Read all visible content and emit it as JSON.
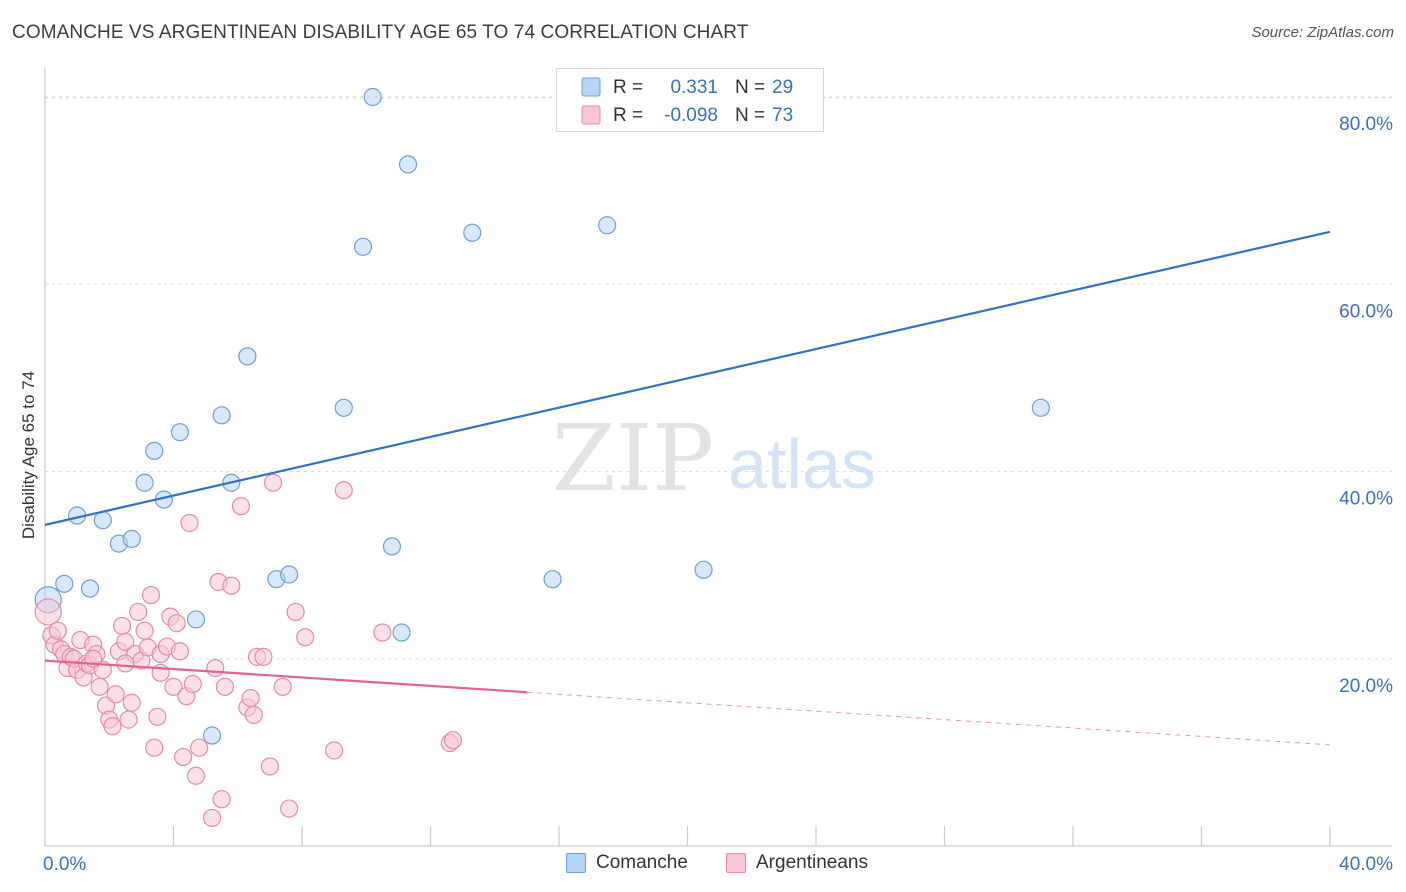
{
  "header": {
    "title": "COMANCHE VS ARGENTINEAN DISABILITY AGE 65 TO 74 CORRELATION CHART",
    "source": "Source: ZipAtlas.com"
  },
  "watermark": {
    "zip": "ZIP",
    "atlas": "atlas"
  },
  "legend": {
    "rows": [
      {
        "r_label": "R =",
        "r_value": "0.331",
        "n_label": "N =",
        "n_value": "29"
      },
      {
        "r_label": "R =",
        "r_value": "-0.098",
        "n_label": "N =",
        "n_value": "73"
      }
    ]
  },
  "colors": {
    "comanche_fill": "#b8d4f5",
    "comanche_stroke": "#6f9fd8",
    "comanche_line": "#2f72c8",
    "argentinean_fill": "#f8c6d6",
    "argentinean_stroke": "#e88aa6",
    "argentinean_line": "#e4628b",
    "value_text": "#3a6fc4",
    "grid": "#dddddd"
  },
  "chart_data": {
    "type": "scatter",
    "title": "COMANCHE VS ARGENTINEAN DISABILITY AGE 65 TO 74 CORRELATION CHART",
    "xlabel": "",
    "ylabel": "Disability Age 65 to 74",
    "xlim": [
      0,
      40
    ],
    "ylim": [
      0,
      80
    ],
    "x_tick_labels": [
      "0.0%",
      "40.0%"
    ],
    "y_ticks": [
      20,
      40,
      60,
      80
    ],
    "y_tick_labels": [
      "20.0%",
      "40.0%",
      "60.0%",
      "80.0%"
    ],
    "grid": true,
    "legend_position": "bottom",
    "series": [
      {
        "name": "Comanche",
        "r": 0.331,
        "n": 29,
        "trend": {
          "x": [
            0,
            40
          ],
          "y": [
            34.3,
            65.6
          ],
          "dashed_from": null
        },
        "points": [
          [
            0.1,
            26.3
          ],
          [
            0.6,
            28.0
          ],
          [
            1.0,
            35.3
          ],
          [
            1.4,
            27.5
          ],
          [
            1.8,
            34.8
          ],
          [
            2.3,
            32.3
          ],
          [
            2.7,
            32.8
          ],
          [
            3.1,
            38.8
          ],
          [
            3.4,
            42.2
          ],
          [
            3.7,
            37.0
          ],
          [
            4.2,
            44.2
          ],
          [
            4.7,
            24.2
          ],
          [
            5.2,
            11.8
          ],
          [
            5.5,
            46.0
          ],
          [
            5.8,
            38.8
          ],
          [
            6.3,
            52.3
          ],
          [
            7.2,
            28.5
          ],
          [
            7.6,
            29.0
          ],
          [
            9.3,
            46.8
          ],
          [
            9.9,
            64.0
          ],
          [
            10.2,
            80.0
          ],
          [
            10.8,
            32.0
          ],
          [
            11.1,
            22.8
          ],
          [
            11.3,
            72.8
          ],
          [
            13.3,
            65.5
          ],
          [
            15.8,
            28.5
          ],
          [
            17.5,
            66.3
          ],
          [
            20.5,
            29.5
          ],
          [
            31.0,
            46.8
          ]
        ]
      },
      {
        "name": "Argentineans",
        "r": -0.098,
        "n": 73,
        "trend": {
          "x": [
            0,
            40
          ],
          "y": [
            19.8,
            10.8
          ],
          "dashed_from": 15.0
        },
        "points": [
          [
            0.1,
            25.0
          ],
          [
            0.2,
            22.5
          ],
          [
            0.3,
            21.5
          ],
          [
            0.4,
            23.0
          ],
          [
            0.5,
            21.0
          ],
          [
            0.6,
            20.5
          ],
          [
            0.7,
            19.0
          ],
          [
            0.8,
            20.2
          ],
          [
            0.9,
            20.0
          ],
          [
            1.0,
            18.8
          ],
          [
            1.1,
            22.0
          ],
          [
            1.2,
            18.0
          ],
          [
            1.3,
            19.5
          ],
          [
            1.4,
            19.3
          ],
          [
            1.5,
            21.5
          ],
          [
            1.6,
            20.5
          ],
          [
            1.7,
            17.0
          ],
          [
            1.8,
            18.8
          ],
          [
            1.9,
            15.0
          ],
          [
            2.0,
            13.5
          ],
          [
            2.1,
            12.8
          ],
          [
            2.2,
            16.2
          ],
          [
            2.3,
            20.8
          ],
          [
            2.4,
            23.5
          ],
          [
            2.5,
            21.8
          ],
          [
            2.6,
            13.5
          ],
          [
            2.7,
            15.3
          ],
          [
            2.8,
            20.5
          ],
          [
            2.9,
            25.0
          ],
          [
            3.0,
            19.8
          ],
          [
            3.1,
            23.0
          ],
          [
            3.2,
            21.2
          ],
          [
            3.3,
            26.8
          ],
          [
            3.4,
            10.5
          ],
          [
            3.5,
            13.8
          ],
          [
            3.6,
            20.5
          ],
          [
            3.8,
            21.3
          ],
          [
            3.9,
            24.5
          ],
          [
            4.0,
            17.0
          ],
          [
            4.1,
            23.8
          ],
          [
            4.2,
            20.8
          ],
          [
            4.3,
            9.5
          ],
          [
            4.4,
            16.0
          ],
          [
            4.5,
            34.5
          ],
          [
            4.6,
            17.3
          ],
          [
            4.7,
            7.5
          ],
          [
            4.8,
            10.5
          ],
          [
            5.2,
            3.0
          ],
          [
            5.3,
            19.0
          ],
          [
            5.4,
            28.2
          ],
          [
            5.5,
            5.0
          ],
          [
            5.6,
            17.0
          ],
          [
            5.8,
            27.8
          ],
          [
            6.1,
            36.3
          ],
          [
            6.3,
            14.8
          ],
          [
            6.4,
            15.8
          ],
          [
            6.5,
            14.0
          ],
          [
            6.6,
            20.2
          ],
          [
            6.8,
            20.2
          ],
          [
            7.0,
            8.5
          ],
          [
            7.1,
            38.8
          ],
          [
            7.4,
            17.0
          ],
          [
            7.6,
            4.0
          ],
          [
            7.8,
            25.0
          ],
          [
            8.1,
            22.3
          ],
          [
            9.0,
            10.2
          ],
          [
            9.3,
            38.0
          ],
          [
            10.5,
            22.8
          ],
          [
            12.6,
            11.0
          ],
          [
            12.7,
            11.3
          ],
          [
            1.5,
            20.0
          ],
          [
            2.5,
            19.5
          ],
          [
            3.6,
            18.5
          ]
        ]
      }
    ]
  }
}
